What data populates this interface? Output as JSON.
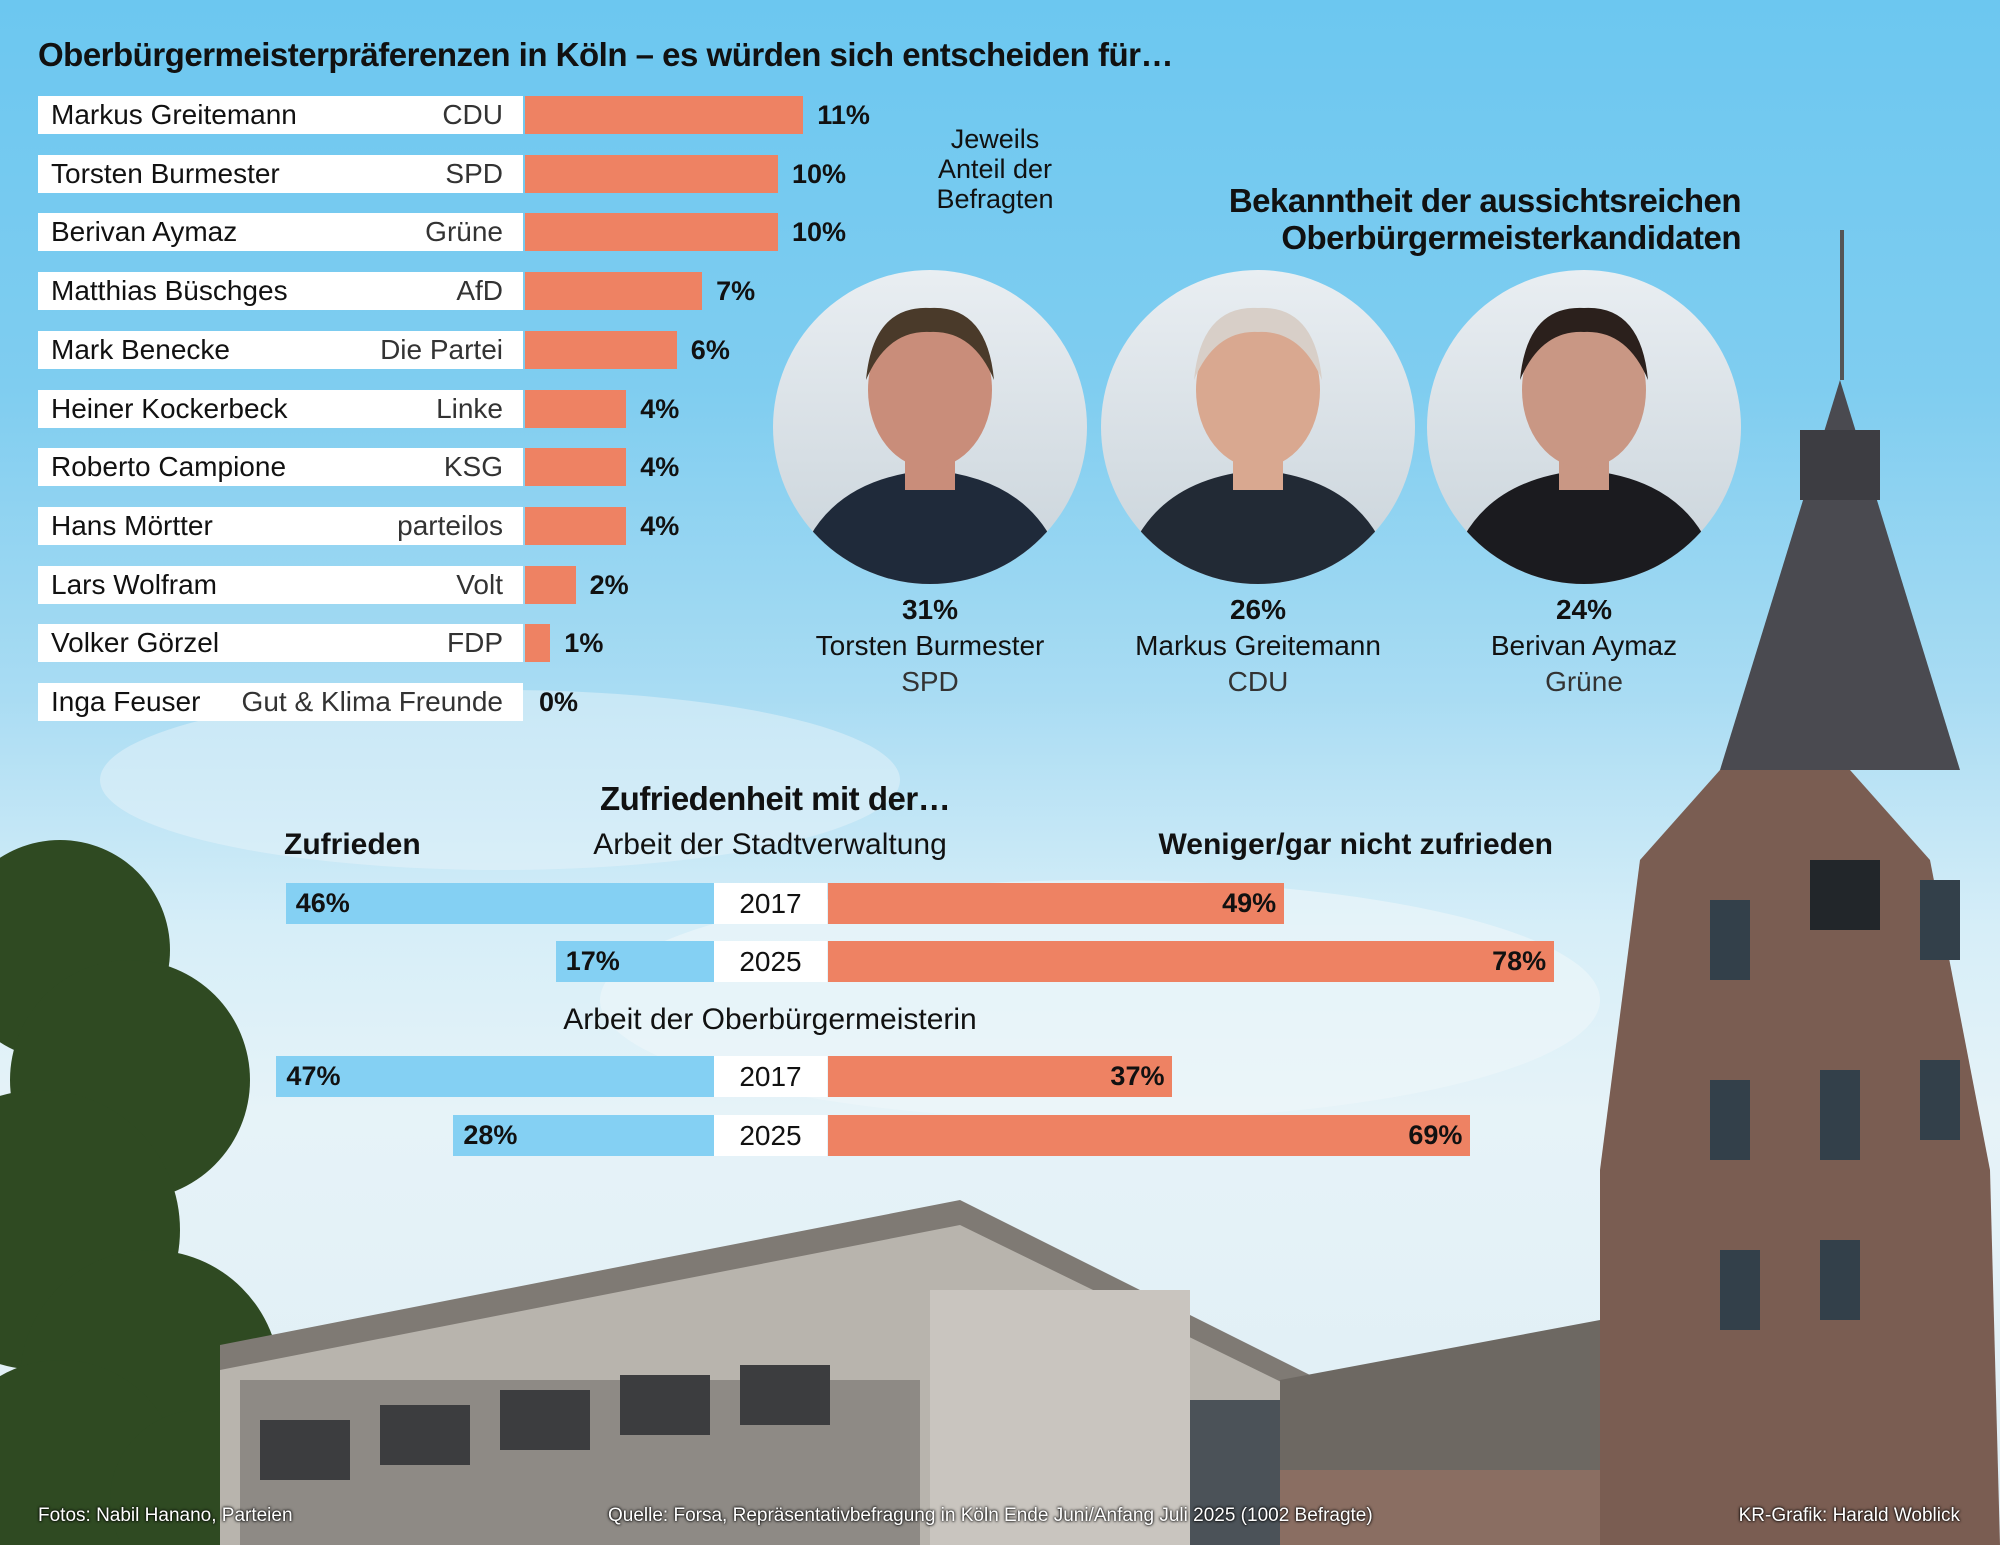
{
  "title": "Oberbürgermeisterpräferenzen in Köln – es würden sich entscheiden für…",
  "note": "Jeweils Anteil der Befragten",
  "bekanntheit_title": [
    "Bekanntheit der aussichtsreichen",
    "Oberbürgermeisterkandidaten"
  ],
  "candidates": [
    {
      "pct": "31%",
      "name": "Torsten Burmester",
      "party": "SPD"
    },
    {
      "pct": "26%",
      "name": "Markus Greitemann",
      "party": "CDU"
    },
    {
      "pct": "24%",
      "name": "Berivan Aymaz",
      "party": "Grüne"
    }
  ],
  "satisfaction": {
    "title": "Zufriedenheit mit der…",
    "left_label": "Zufrieden",
    "right_label": "Weniger/gar nicht zufrieden",
    "groups": [
      {
        "label": "Arbeit der Stadtverwaltung",
        "rows": [
          {
            "year": "2017",
            "sat": 46,
            "sat_label": "46%",
            "unsat": 49,
            "unsat_label": "49%"
          },
          {
            "year": "2025",
            "sat": 17,
            "sat_label": "17%",
            "unsat": 78,
            "unsat_label": "78%"
          }
        ]
      },
      {
        "label": "Arbeit der Oberbürgermeisterin",
        "rows": [
          {
            "year": "2017",
            "sat": 47,
            "sat_label": "47%",
            "unsat": 37,
            "unsat_label": "37%"
          },
          {
            "year": "2025",
            "sat": 28,
            "sat_label": "28%",
            "unsat": 69,
            "unsat_label": "69%"
          }
        ]
      }
    ]
  },
  "footer": {
    "photos": "Fotos: Nabil Hanano, Parteien",
    "source": "Quelle: Forsa, Repräsentativbefragung in Köln Ende Juni/Anfang Juli 2025 (1002 Befragte)",
    "credit": "KR-Grafik: Harald Woblick"
  },
  "colors": {
    "orange": "#ee8263",
    "blue": "#84d0f3"
  },
  "chart_data": [
    {
      "type": "bar",
      "title": "Oberbürgermeisterpräferenzen in Köln – es würden sich entscheiden für…",
      "unit": "%",
      "categories": [
        "Markus Greitemann",
        "Torsten Burmester",
        "Berivan Aymaz",
        "Matthias Büschges",
        "Mark Benecke",
        "Heiner Kockerbeck",
        "Roberto Campione",
        "Hans Mörtter",
        "Lars Wolfram",
        "Volker Görzel",
        "Inga Feuser"
      ],
      "parties": [
        "CDU",
        "SPD",
        "Grüne",
        "AfD",
        "Die Partei",
        "Linke",
        "KSG",
        "parteilos",
        "Volt",
        "FDP",
        "Gut & Klima Freunde"
      ],
      "values": [
        11,
        10,
        10,
        7,
        6,
        4,
        4,
        4,
        2,
        1,
        0
      ],
      "labels": [
        "11%",
        "10%",
        "10%",
        "7%",
        "6%",
        "4%",
        "4%",
        "4%",
        "2%",
        "1%",
        "0%"
      ]
    },
    {
      "type": "bar",
      "title": "Bekanntheit der aussichtsreichen Oberbürgermeisterkandidaten",
      "categories": [
        "Torsten Burmester",
        "Markus Greitemann",
        "Berivan Aymaz"
      ],
      "values": [
        31,
        26,
        24
      ]
    },
    {
      "type": "bar",
      "title": "Zufriedenheit mit der…",
      "categories": [
        "Stadtverwaltung 2017",
        "Stadtverwaltung 2025",
        "Oberbürgermeisterin 2017",
        "Oberbürgermeisterin 2025"
      ],
      "series": [
        {
          "name": "Zufrieden",
          "values": [
            46,
            17,
            47,
            28
          ]
        },
        {
          "name": "Weniger/gar nicht zufrieden",
          "values": [
            49,
            78,
            37,
            69
          ]
        }
      ]
    }
  ]
}
